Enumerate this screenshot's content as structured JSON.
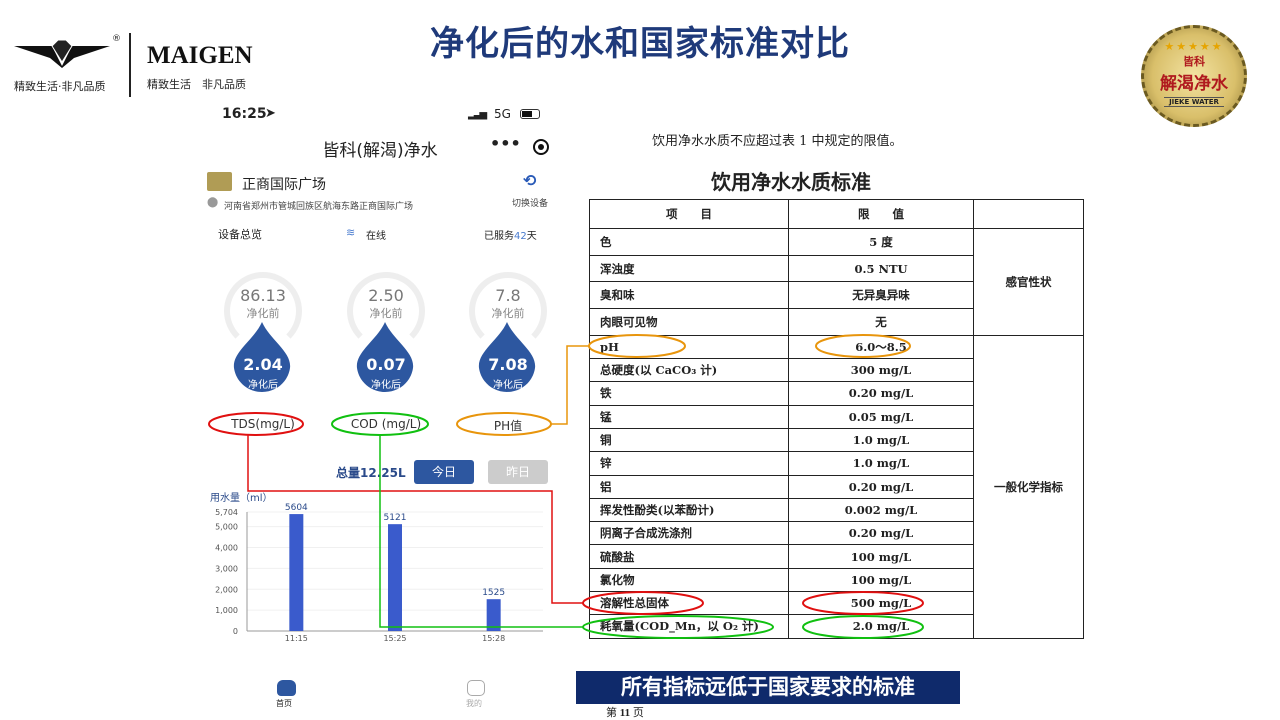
{
  "title": "净化后的水和国家标准对比",
  "logo_left": {
    "brand": "MAIGEN",
    "slogan1": "精致生活·非凡品质",
    "slogan2": "精致生活　非凡品质",
    "reg": "®"
  },
  "logo_right": {
    "line1": "皆科",
    "line2": "解渴净水",
    "line3": "JIEKE WATER"
  },
  "phone": {
    "status": {
      "time": "16:25",
      "network": "5G"
    },
    "app_title": "皆科(解渴)净水",
    "location": {
      "name": "正商国际广场",
      "address": "河南省郑州市管城回族区航海东路正商国际广场",
      "switch_label": "切换设备"
    },
    "overview": {
      "label": "设备总览",
      "online": "在线",
      "served_prefix": "已服务",
      "served_days": "42",
      "served_suffix": "天"
    },
    "gauges": [
      {
        "before": "86.13",
        "before_label": "净化前",
        "after": "2.04",
        "after_label": "净化后",
        "name": "TDS(mg/L)"
      },
      {
        "before": "2.50",
        "before_label": "净化前",
        "after": "0.07",
        "after_label": "净化后",
        "name": "COD (mg/L)"
      },
      {
        "before": "7.8",
        "before_label": "净化前",
        "after": "7.08",
        "after_label": "净化后",
        "name": "PH值"
      }
    ],
    "total": "总量12.25L",
    "tab_today": "今日",
    "tab_yesterday": "昨日",
    "nav": {
      "home": "首页",
      "mine": "我的"
    }
  },
  "chart_data": {
    "type": "bar",
    "ylabel": "用水量（ml）",
    "categories": [
      "11:15",
      "15:25",
      "15:28"
    ],
    "values": [
      5604,
      5121,
      1525
    ],
    "ylim": [
      0,
      5704
    ],
    "yticks": [
      "0",
      "1,000",
      "2,000",
      "3,000",
      "4,000",
      "5,000",
      "5,704"
    ],
    "color": "#3a5bcc"
  },
  "standard": {
    "note": "饮用净水水质不应超过表 1 中规定的限值。",
    "table_title": "饮用净水水质标准",
    "headers": [
      "项　　目",
      "限　　值",
      ""
    ],
    "group1": "感官性状",
    "group2": "一般化学指标",
    "rows": [
      {
        "item": "色",
        "limit": "5 度"
      },
      {
        "item": "浑浊度",
        "limit": "0.5 NTU"
      },
      {
        "item": "臭和味",
        "limit": "无异臭异味"
      },
      {
        "item": "肉眼可见物",
        "limit": "无"
      },
      {
        "item": "pH",
        "limit": "6.0～8.5"
      },
      {
        "item": "总硬度(以 CaCO₃ 计)",
        "limit": "300 mg/L"
      },
      {
        "item": "铁",
        "limit": "0.20 mg/L"
      },
      {
        "item": "锰",
        "limit": "0.05 mg/L"
      },
      {
        "item": "铜",
        "limit": "1.0 mg/L"
      },
      {
        "item": "锌",
        "limit": "1.0 mg/L"
      },
      {
        "item": "铝",
        "limit": "0.20 mg/L"
      },
      {
        "item": "挥发性酚类(以苯酚计)",
        "limit": "0.002 mg/L"
      },
      {
        "item": "阴离子合成洗涤剂",
        "limit": "0.20 mg/L"
      },
      {
        "item": "硫酸盐",
        "limit": "100 mg/L"
      },
      {
        "item": "氯化物",
        "limit": "100 mg/L"
      },
      {
        "item": "溶解性总固体",
        "limit": "500 mg/L"
      },
      {
        "item": "耗氧量(COD_Mn，以 O₂ 计)",
        "limit": "2.0 mg/L"
      }
    ]
  },
  "highlight_colors": {
    "tds": "#e01010",
    "cod": "#10c010",
    "ph": "#e8950c"
  },
  "banner": "所有指标远低于国家要求的标准",
  "page": {
    "prefix": "第",
    "num": "11",
    "suffix": "页"
  }
}
